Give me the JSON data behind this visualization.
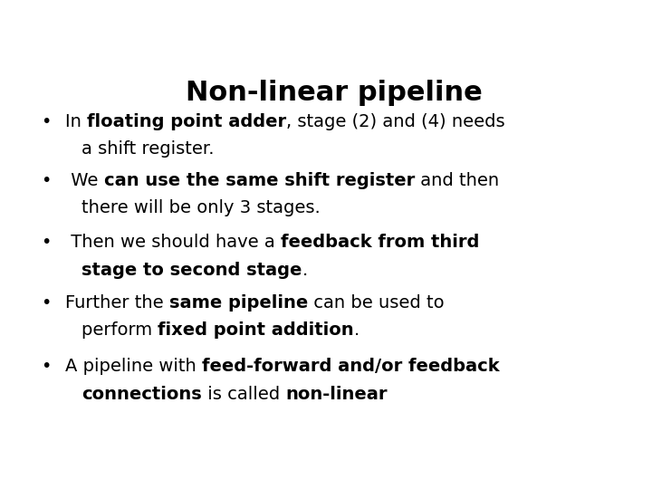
{
  "title": "Non-linear pipeline",
  "title_fontsize": 22,
  "background_color": "#ffffff",
  "text_color": "#000000",
  "body_fontsize": 14,
  "bullet_char": "•",
  "font_family": "DejaVu Sans",
  "bullets": [
    {
      "lines": [
        [
          {
            "text": "In ",
            "bold": false
          },
          {
            "text": "floating point adder",
            "bold": true
          },
          {
            "text": ", stage (2) and (4) needs",
            "bold": false
          }
        ],
        [
          {
            "text": "a shift register.",
            "bold": false
          }
        ]
      ]
    },
    {
      "lines": [
        [
          {
            "text": " We ",
            "bold": false
          },
          {
            "text": "can use the same shift register",
            "bold": true
          },
          {
            "text": " and then",
            "bold": false
          }
        ],
        [
          {
            "text": "there will be only 3 stages.",
            "bold": false
          }
        ]
      ]
    },
    {
      "lines": [
        [
          {
            "text": " Then we should have a ",
            "bold": false
          },
          {
            "text": "feedback from third",
            "bold": true
          }
        ],
        [
          {
            "text": "stage to second stage",
            "bold": true
          },
          {
            "text": ".",
            "bold": false
          }
        ]
      ]
    },
    {
      "lines": [
        [
          {
            "text": "Further the ",
            "bold": false
          },
          {
            "text": "same pipeline",
            "bold": true
          },
          {
            "text": " can be used to",
            "bold": false
          }
        ],
        [
          {
            "text": "perform ",
            "bold": false
          },
          {
            "text": "fixed point addition",
            "bold": true
          },
          {
            "text": ".",
            "bold": false
          }
        ]
      ]
    },
    {
      "lines": [
        [
          {
            "text": "A pipeline with ",
            "bold": false
          },
          {
            "text": "feed-forward and/or feedback",
            "bold": true
          }
        ],
        [
          {
            "text": "connections",
            "bold": true
          },
          {
            "text": " is called ",
            "bold": false
          },
          {
            "text": "non-linear",
            "bold": true
          }
        ]
      ]
    }
  ]
}
